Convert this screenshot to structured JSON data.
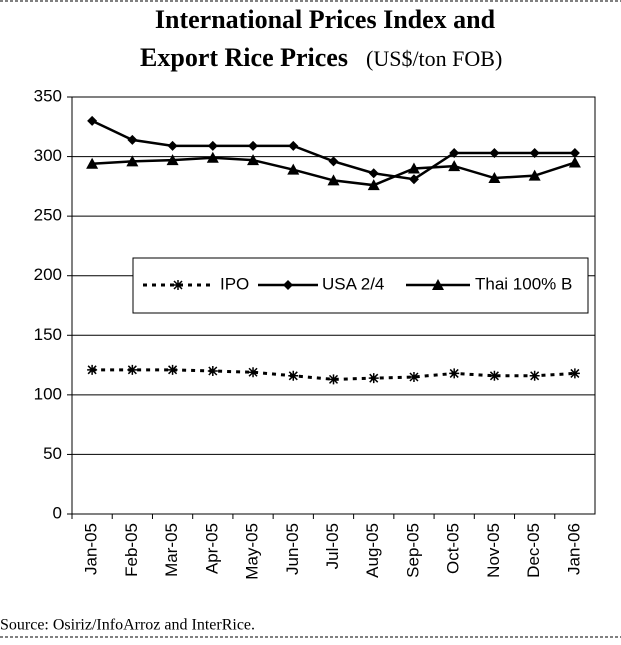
{
  "chart_data": {
    "type": "line",
    "title_lines": [
      "International Prices Index and",
      "Export Rice Prices"
    ],
    "subtitle": "(US$/ton FOB)",
    "source": "Source:  Osiriz/InfoArroz and InterRice.",
    "categories": [
      "Jan-05",
      "Feb-05",
      "Mar-05",
      "Apr-05",
      "May-05",
      "Jun-05",
      "Jul-05",
      "Aug-05",
      "Sep-05",
      "Oct-05",
      "Nov-05",
      "Dec-05",
      "Jan-06"
    ],
    "series": [
      {
        "name": "IPO",
        "color": "#000000",
        "marker": "asterisk",
        "dash": "dotted",
        "values": [
          121,
          121,
          121,
          120,
          119,
          116,
          113,
          114,
          115,
          118,
          116,
          116,
          118
        ]
      },
      {
        "name": "USA 2/4",
        "color": "#000000",
        "marker": "diamond",
        "dash": "solid",
        "values": [
          330,
          314,
          309,
          309,
          309,
          309,
          296,
          286,
          281,
          303,
          303,
          303,
          303
        ]
      },
      {
        "name": "Thai 100% B",
        "color": "#000000",
        "marker": "triangle",
        "dash": "solid",
        "values": [
          294,
          296,
          297,
          299,
          297,
          289,
          280,
          276,
          290,
          292,
          282,
          284,
          295
        ]
      }
    ],
    "ylim": [
      0,
      350
    ],
    "yticks": [
      0,
      50,
      100,
      150,
      200,
      250,
      300,
      350
    ],
    "grid": true,
    "legend": "center"
  }
}
